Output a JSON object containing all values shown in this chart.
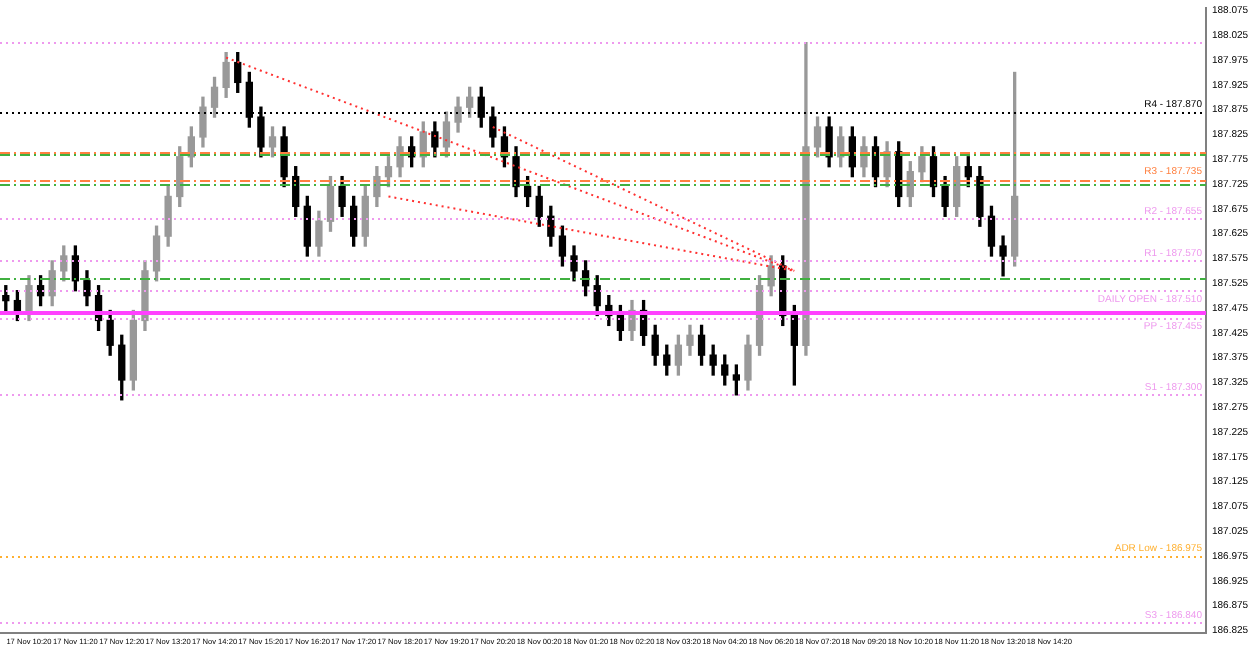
{
  "chart_data": {
    "type": "candlestick",
    "categories": [
      null,
      null,
      "17 Nov 10:20",
      null,
      null,
      null,
      "17 Nov 11:20",
      null,
      null,
      null,
      "17 Nov 12:20",
      null,
      null,
      null,
      "17 Nov 13:20",
      null,
      null,
      null,
      "17 Nov 14:20",
      null,
      null,
      null,
      "17 Nov 15:20",
      null,
      null,
      null,
      "17 Nov 16:20",
      null,
      null,
      null,
      "17 Nov 17:20",
      null,
      null,
      null,
      "17 Nov 18:20",
      null,
      null,
      null,
      "17 Nov 19:20",
      null,
      null,
      null,
      "17 Nov 20:20",
      null,
      null,
      null,
      "18 Nov 00:20",
      null,
      null,
      null,
      "18 Nov 01:20",
      null,
      null,
      null,
      "18 Nov 02:20",
      null,
      null,
      null,
      "18 Nov 03:20",
      null,
      null,
      null,
      "18 Nov 04:20",
      null,
      null,
      null,
      "18 Nov 06:20",
      null,
      null,
      null,
      "18 Nov 07:20",
      null,
      null,
      null,
      "18 Nov 09:20",
      null,
      null,
      null,
      "18 Nov 10:20",
      null,
      null,
      null,
      "18 Nov 11:20",
      null,
      null,
      null,
      "18 Nov 13:20",
      null,
      null,
      null,
      "18 Nov 14:20",
      null,
      null,
      null,
      null,
      null,
      null,
      null,
      null,
      null,
      null,
      null,
      null,
      null
    ],
    "ohlc": [
      [
        187.5,
        187.52,
        187.47,
        187.49
      ],
      [
        187.49,
        187.51,
        187.45,
        187.47
      ],
      [
        187.47,
        187.54,
        187.45,
        187.52
      ],
      [
        187.52,
        187.54,
        187.48,
        187.5
      ],
      [
        187.5,
        187.57,
        187.48,
        187.55
      ],
      [
        187.55,
        187.6,
        187.53,
        187.58
      ],
      [
        187.58,
        187.6,
        187.51,
        187.53
      ],
      [
        187.53,
        187.55,
        187.48,
        187.5
      ],
      [
        187.5,
        187.52,
        187.43,
        187.45
      ],
      [
        187.45,
        187.47,
        187.38,
        187.4
      ],
      [
        187.4,
        187.42,
        187.29,
        187.33
      ],
      [
        187.33,
        187.47,
        187.31,
        187.45
      ],
      [
        187.45,
        187.57,
        187.43,
        187.55
      ],
      [
        187.55,
        187.64,
        187.53,
        187.62
      ],
      [
        187.62,
        187.72,
        187.6,
        187.7
      ],
      [
        187.7,
        187.8,
        187.68,
        187.78
      ],
      [
        187.78,
        187.84,
        187.76,
        187.82
      ],
      [
        187.82,
        187.9,
        187.8,
        187.88
      ],
      [
        187.88,
        187.94,
        187.86,
        187.92
      ],
      [
        187.92,
        187.99,
        187.9,
        187.97
      ],
      [
        187.97,
        187.99,
        187.91,
        187.93
      ],
      [
        187.93,
        187.95,
        187.84,
        187.86
      ],
      [
        187.86,
        187.88,
        187.78,
        187.8
      ],
      [
        187.8,
        187.84,
        187.78,
        187.82
      ],
      [
        187.82,
        187.84,
        187.72,
        187.74
      ],
      [
        187.74,
        187.76,
        187.66,
        187.68
      ],
      [
        187.68,
        187.7,
        187.58,
        187.6
      ],
      [
        187.6,
        187.67,
        187.58,
        187.65
      ],
      [
        187.65,
        187.74,
        187.63,
        187.72
      ],
      [
        187.72,
        187.74,
        187.66,
        187.68
      ],
      [
        187.68,
        187.7,
        187.6,
        187.62
      ],
      [
        187.62,
        187.72,
        187.6,
        187.7
      ],
      [
        187.7,
        187.76,
        187.68,
        187.74
      ],
      [
        187.74,
        187.78,
        187.72,
        187.76
      ],
      [
        187.76,
        187.82,
        187.74,
        187.8
      ],
      [
        187.8,
        187.82,
        187.76,
        187.78
      ],
      [
        187.78,
        187.85,
        187.76,
        187.83
      ],
      [
        187.83,
        187.85,
        187.78,
        187.8
      ],
      [
        187.8,
        187.87,
        187.78,
        187.85
      ],
      [
        187.85,
        187.9,
        187.83,
        187.88
      ],
      [
        187.88,
        187.92,
        187.86,
        187.9
      ],
      [
        187.9,
        187.92,
        187.84,
        187.86
      ],
      [
        187.86,
        187.88,
        187.8,
        187.82
      ],
      [
        187.82,
        187.84,
        187.76,
        187.78
      ],
      [
        187.78,
        187.8,
        187.7,
        187.72
      ],
      [
        187.72,
        187.74,
        187.68,
        187.7
      ],
      [
        187.7,
        187.72,
        187.64,
        187.66
      ],
      [
        187.66,
        187.68,
        187.6,
        187.62
      ],
      [
        187.62,
        187.64,
        187.56,
        187.58
      ],
      [
        187.58,
        187.6,
        187.53,
        187.55
      ],
      [
        187.55,
        187.57,
        187.5,
        187.52
      ],
      [
        187.52,
        187.54,
        187.46,
        187.48
      ],
      [
        187.48,
        187.5,
        187.44,
        187.46
      ],
      [
        187.46,
        187.48,
        187.41,
        187.43
      ],
      [
        187.43,
        187.49,
        187.41,
        187.47
      ],
      [
        187.47,
        187.49,
        187.4,
        187.42
      ],
      [
        187.42,
        187.44,
        187.36,
        187.38
      ],
      [
        187.38,
        187.4,
        187.34,
        187.36
      ],
      [
        187.36,
        187.42,
        187.34,
        187.4
      ],
      [
        187.4,
        187.44,
        187.38,
        187.42
      ],
      [
        187.42,
        187.44,
        187.36,
        187.38
      ],
      [
        187.38,
        187.4,
        187.34,
        187.36
      ],
      [
        187.36,
        187.38,
        187.32,
        187.34
      ],
      [
        187.34,
        187.36,
        187.3,
        187.33
      ],
      [
        187.33,
        187.42,
        187.31,
        187.4
      ],
      [
        187.4,
        187.54,
        187.38,
        187.52
      ],
      [
        187.52,
        187.58,
        187.5,
        187.56
      ],
      [
        187.56,
        187.58,
        187.44,
        187.46
      ],
      [
        187.46,
        187.48,
        187.32,
        187.4
      ],
      [
        187.4,
        188.01,
        187.38,
        187.8
      ],
      [
        187.8,
        187.86,
        187.78,
        187.84
      ],
      [
        187.84,
        187.86,
        187.76,
        187.78
      ],
      [
        187.78,
        187.84,
        187.76,
        187.82
      ],
      [
        187.82,
        187.84,
        187.74,
        187.76
      ],
      [
        187.76,
        187.82,
        187.74,
        187.8
      ],
      [
        187.8,
        187.82,
        187.72,
        187.74
      ],
      [
        187.74,
        187.81,
        187.72,
        187.79
      ],
      [
        187.79,
        187.81,
        187.68,
        187.7
      ],
      [
        187.7,
        187.77,
        187.68,
        187.75
      ],
      [
        187.75,
        187.8,
        187.73,
        187.78
      ],
      [
        187.78,
        187.8,
        187.7,
        187.72
      ],
      [
        187.72,
        187.74,
        187.66,
        187.68
      ],
      [
        187.68,
        187.78,
        187.66,
        187.76
      ],
      [
        187.76,
        187.78,
        187.72,
        187.74
      ],
      [
        187.74,
        187.76,
        187.64,
        187.66
      ],
      [
        187.66,
        187.68,
        187.58,
        187.6
      ],
      [
        187.6,
        187.62,
        187.54,
        187.58
      ],
      [
        187.58,
        187.95,
        187.56,
        187.7
      ],
      null,
      null,
      null,
      null,
      null,
      null,
      null,
      null,
      null,
      null,
      null,
      null,
      null,
      null,
      null,
      null
    ],
    "series": [
      {
        "type": "line",
        "color": "#ff3030",
        "line_style": "dotted",
        "marker": "none",
        "values": [
          null,
          null,
          null,
          null,
          null,
          null,
          null,
          null,
          null,
          null,
          null,
          null,
          null,
          null,
          null,
          null,
          null,
          null,
          null,
          187.98,
          null,
          null,
          null,
          null,
          null,
          null,
          null,
          null,
          null,
          null,
          null,
          null,
          null,
          null,
          null,
          null,
          null,
          null,
          null,
          null,
          null,
          null,
          null,
          null,
          null,
          null,
          null,
          null,
          null,
          null,
          null,
          null,
          null,
          null,
          null,
          null,
          null,
          null,
          null,
          null,
          null,
          null,
          null,
          null,
          null,
          null,
          null,
          null,
          187.55,
          null,
          null,
          null,
          null,
          null,
          null,
          null,
          null,
          null,
          null,
          null,
          null,
          null,
          null,
          null,
          null,
          null,
          null,
          null,
          null,
          null,
          null,
          null,
          null,
          null,
          null,
          null,
          null,
          null,
          null,
          null,
          null,
          null,
          null,
          null
        ]
      },
      {
        "type": "line",
        "color": "#ff3030",
        "line_style": "dotted",
        "marker": "none",
        "values": [
          null,
          null,
          null,
          null,
          null,
          null,
          null,
          null,
          null,
          null,
          null,
          null,
          null,
          null,
          null,
          null,
          null,
          null,
          null,
          null,
          null,
          null,
          null,
          null,
          null,
          null,
          null,
          null,
          null,
          null,
          null,
          null,
          null,
          187.7,
          null,
          null,
          null,
          null,
          null,
          null,
          null,
          null,
          null,
          null,
          null,
          null,
          null,
          null,
          null,
          null,
          null,
          null,
          null,
          null,
          null,
          null,
          null,
          null,
          null,
          null,
          null,
          null,
          null,
          null,
          null,
          null,
          null,
          null,
          187.55,
          null,
          null,
          null,
          null,
          null,
          null,
          null,
          null,
          null,
          null,
          null,
          null,
          null,
          null,
          null,
          null,
          null,
          null,
          null,
          null,
          null,
          null,
          null,
          null,
          null,
          null,
          null,
          null,
          null,
          null,
          null,
          null,
          null,
          null,
          null
        ]
      },
      {
        "type": "line",
        "color": "#ff3030",
        "line_style": "dotted",
        "marker": "none",
        "values": [
          null,
          null,
          null,
          null,
          null,
          null,
          null,
          null,
          null,
          null,
          null,
          null,
          null,
          null,
          null,
          null,
          null,
          null,
          null,
          null,
          null,
          null,
          null,
          null,
          null,
          null,
          null,
          null,
          null,
          null,
          null,
          null,
          null,
          null,
          null,
          null,
          null,
          null,
          null,
          null,
          null,
          null,
          187.84,
          null,
          null,
          null,
          null,
          null,
          null,
          null,
          null,
          null,
          null,
          null,
          null,
          null,
          null,
          null,
          null,
          null,
          null,
          null,
          null,
          null,
          null,
          null,
          null,
          null,
          187.55,
          null,
          null,
          null,
          null,
          null,
          null,
          null,
          null,
          null,
          null,
          null,
          null,
          null,
          null,
          null,
          null,
          null,
          null,
          null,
          null,
          null,
          null,
          null,
          null,
          null,
          null,
          null,
          null,
          null,
          null,
          null,
          null,
          null,
          null,
          null
        ]
      }
    ],
    "ylim": [
      186.82,
      188.08
    ],
    "yticks": [
      186.825,
      {
        "value": 186.875,
        "label": "186.875"
      },
      186.925,
      186.975,
      187.025,
      187.075,
      187.125,
      187.175,
      187.225,
      187.275,
      187.325,
      187.375,
      187.425,
      187.475,
      187.525,
      187.575,
      187.625,
      187.675,
      187.725,
      187.775,
      187.825,
      187.875,
      187.925,
      187.975,
      188.025,
      188.075
    ],
    "ref_lines": [
      {
        "axis": "y",
        "value": 188.01,
        "label": null,
        "color": "#ee99ee",
        "line_style": "dotted"
      },
      {
        "axis": "y",
        "value": 187.87,
        "label": "R4 - 187.870",
        "color": "#000000",
        "line_style": "dotted"
      },
      {
        "axis": "y",
        "value": 187.79,
        "label": null,
        "color": "#ff8040",
        "line_style": "dashed"
      },
      {
        "axis": "y",
        "value": 187.785,
        "label": null,
        "color": "#40b040",
        "line_style": "dashed"
      },
      {
        "axis": "y",
        "value": 187.735,
        "label": "R3 - 187.735",
        "color": "#ff8040",
        "line_style": "dashed"
      },
      {
        "axis": "y",
        "value": 187.725,
        "label": null,
        "color": "#40b040",
        "line_style": "dashed"
      },
      {
        "axis": "y",
        "value": 187.655,
        "label": "R2 - 187.655",
        "color": "#ee99ee",
        "line_style": "dotted"
      },
      {
        "axis": "y",
        "value": 187.57,
        "label": "R1 - 187.570",
        "color": "#ee99ee",
        "line_style": "dotted"
      },
      {
        "axis": "y",
        "value": 187.535,
        "label": null,
        "color": "#40b040",
        "line_style": "dashed"
      },
      {
        "axis": "y",
        "value": 187.51,
        "label": "DAILY OPEN - 187.510",
        "color": "#ee99ee",
        "line_style": "dotted"
      },
      {
        "axis": "y",
        "value": 187.467,
        "label": null,
        "color": "#ff40ff",
        "line_style": "solid"
      },
      {
        "axis": "y",
        "value": 187.455,
        "label": "PP - 187.455",
        "color": "#ee99ee",
        "line_style": "dotted"
      },
      {
        "axis": "y",
        "value": 187.3,
        "label": "S1 - 187.300",
        "color": "#ee99ee",
        "line_style": "dotted"
      },
      {
        "axis": "y",
        "value": 186.975,
        "label": "ADR Low - 186.975",
        "color": "#ffb030",
        "line_style": "dotted"
      },
      {
        "axis": "y",
        "value": 186.84,
        "label": "S3 - 186.840",
        "color": "#ee99ee",
        "line_style": "dotted"
      }
    ],
    "grid": false,
    "legend": false
  }
}
